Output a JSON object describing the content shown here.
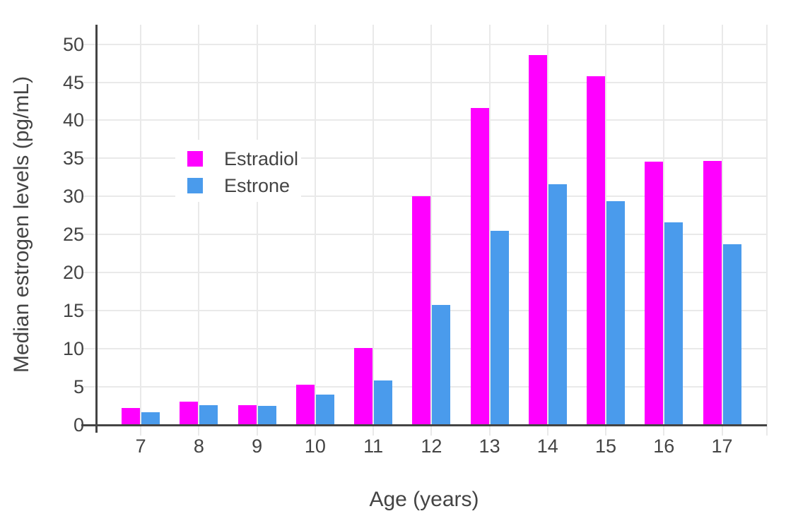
{
  "chart_data": {
    "type": "bar",
    "title": "",
    "xlabel": "Age (years)",
    "ylabel": "Median estrogen levels (pg/mL)",
    "categories": [
      7,
      8,
      9,
      10,
      11,
      12,
      13,
      14,
      15,
      16,
      17
    ],
    "series": [
      {
        "name": "Estradiol",
        "color": "#ff00ff",
        "values": [
          2.2,
          3.1,
          2.6,
          5.3,
          10.1,
          30,
          41.6,
          48.6,
          45.8,
          34.6,
          34.7
        ]
      },
      {
        "name": "Estrone",
        "color": "#4a9bec",
        "values": [
          1.7,
          2.6,
          2.5,
          4.0,
          5.8,
          15.8,
          25.5,
          31.6,
          29.4,
          26.6,
          23.7
        ]
      }
    ],
    "yticks": [
      0,
      5,
      10,
      15,
      20,
      25,
      30,
      35,
      40,
      45,
      50
    ],
    "ylim": [
      0,
      52.5
    ],
    "grid": true,
    "legend_position": "inside-top-left",
    "bar_mode": "grouped"
  },
  "styles": {
    "background": "#ffffff",
    "text_color": "#444444",
    "grid_color": "#e9e9e9",
    "axis_color": "#444444"
  }
}
